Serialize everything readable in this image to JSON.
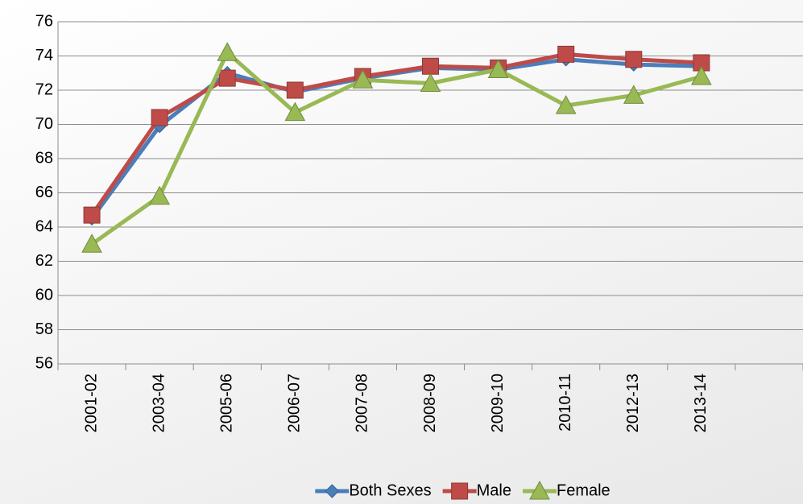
{
  "chart_data": {
    "type": "line",
    "categories": [
      "2001-02",
      "2003-04",
      "2005-06",
      "2006-07",
      "2007-08",
      "2008-09",
      "2009-10",
      "2010-11",
      "2012-13",
      "2013-14",
      null
    ],
    "series": [
      {
        "name": "Both Sexes",
        "color": "#4a7ebb",
        "marker": "diamond",
        "values": [
          64.5,
          69.9,
          73.0,
          71.9,
          72.7,
          73.3,
          73.2,
          73.8,
          73.5,
          73.4,
          null
        ]
      },
      {
        "name": "Male",
        "color": "#be4b48",
        "marker": "square",
        "values": [
          64.7,
          70.4,
          72.7,
          72.0,
          72.8,
          73.4,
          73.3,
          74.1,
          73.8,
          73.6,
          null
        ]
      },
      {
        "name": "Female",
        "color": "#98b954",
        "marker": "triangle",
        "values": [
          63.0,
          65.8,
          74.2,
          70.7,
          72.6,
          72.4,
          73.2,
          71.1,
          71.7,
          72.8,
          null
        ]
      }
    ],
    "ylim": [
      56,
      76
    ],
    "yticks": [
      56,
      58,
      60,
      62,
      64,
      66,
      68,
      70,
      72,
      74,
      76
    ],
    "grid": true,
    "legend": "bottom"
  }
}
